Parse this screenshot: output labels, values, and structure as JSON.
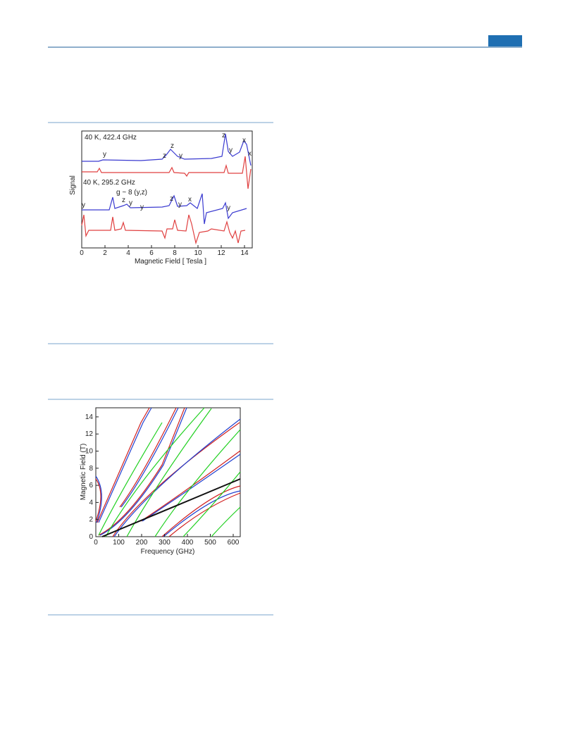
{
  "figure_1": {
    "annotations": [
      "40 K,  422.4 GHz",
      "y",
      "z",
      "z",
      "y",
      "z",
      "y",
      "x",
      "x",
      "40 K,  295.2 GHz",
      "g ~ 8 (y,z)",
      "y",
      "z",
      "y",
      "y",
      "z",
      "y",
      "x",
      "y"
    ],
    "x_label": "Magnetic Field [ Tesla ]",
    "y_label": "Signal",
    "x_tick_labels": [
      "0",
      "2",
      "4",
      "6",
      "8",
      "10",
      "12",
      "14"
    ]
  },
  "figure_2": {
    "x_label": "Frequency (GHz)",
    "y_label": "Magnetic Field (T)",
    "x_tick_labels": [
      "0",
      "100",
      "200",
      "300",
      "400",
      "500",
      "600"
    ],
    "y_tick_labels": [
      "0",
      "2",
      "4",
      "6",
      "8",
      "10",
      "12",
      "14"
    ]
  }
}
